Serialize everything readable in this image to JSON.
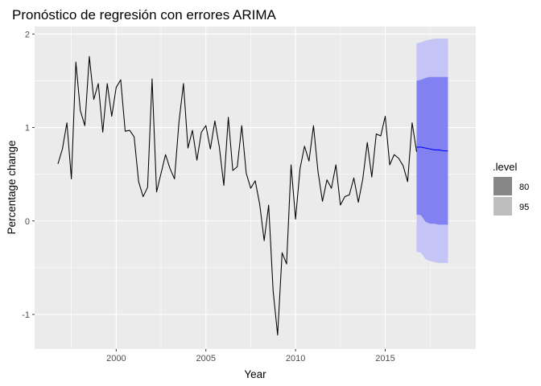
{
  "chart_data": {
    "type": "line",
    "title": "Pronóstico de regresión con errores ARIMA",
    "xlabel": "Year",
    "ylabel": "Percentage change",
    "xlim": [
      1995.45,
      2020.05
    ],
    "ylim": [
      -1.37,
      2.08
    ],
    "x_ticks": [
      2000,
      2005,
      2010,
      2015
    ],
    "x_tick_labels": [
      "2000",
      "2005",
      "2010",
      "2015"
    ],
    "y_ticks": [
      -1,
      0,
      1,
      2
    ],
    "y_tick_labels": [
      "-1",
      "0",
      "1",
      "2"
    ],
    "grid": true,
    "legend_position": "right",
    "series": [
      {
        "start": 1996.75,
        "step": 0.25,
        "values": [
          0.61,
          0.77,
          1.05,
          0.45,
          1.7,
          1.18,
          1.02,
          1.76,
          1.3,
          1.47,
          0.95,
          1.47,
          1.12,
          1.43,
          1.51,
          0.96,
          0.97,
          0.9,
          0.42,
          0.26,
          0.36,
          1.52,
          0.31,
          0.51,
          0.71,
          0.56,
          0.45,
          1.06,
          1.47,
          0.78,
          0.97,
          0.65,
          0.95,
          1.02,
          0.77,
          1.07,
          0.79,
          0.38,
          1.11,
          0.54,
          0.58,
          1.02,
          0.51,
          0.35,
          0.43,
          0.18,
          -0.21,
          0.17,
          -0.75,
          -1.22,
          -0.34,
          -0.46,
          0.6,
          0.02,
          0.56,
          0.8,
          0.64,
          1.02,
          0.53,
          0.21,
          0.44,
          0.35,
          0.6,
          0.17,
          0.26,
          0.28,
          0.46,
          0.2,
          0.45,
          0.84,
          0.47,
          0.93,
          0.91,
          1.12,
          0.6,
          0.71,
          0.67,
          0.59,
          0.42,
          1.05,
          0.74
        ]
      }
    ],
    "forecast": {
      "x": [
        2016.75,
        2017.0,
        2017.25,
        2017.5,
        2017.75,
        2018.0,
        2018.25,
        2018.5
      ],
      "mean": [
        0.79,
        0.79,
        0.78,
        0.77,
        0.76,
        0.76,
        0.75,
        0.75
      ],
      "lo80": [
        0.07,
        0.06,
        -0.01,
        -0.03,
        -0.03,
        -0.04,
        -0.04,
        -0.04
      ],
      "hi80": [
        1.5,
        1.51,
        1.53,
        1.54,
        1.54,
        1.54,
        1.54,
        1.54
      ],
      "lo95": [
        -0.33,
        -0.34,
        -0.41,
        -0.43,
        -0.44,
        -0.45,
        -0.45,
        -0.45
      ],
      "hi95": [
        1.9,
        1.91,
        1.93,
        1.94,
        1.95,
        1.95,
        1.95,
        1.95
      ]
    },
    "legend": {
      "title": ".level",
      "items": [
        {
          "label": "80",
          "color": "#878787"
        },
        {
          "label": "95",
          "color": "#bebebe"
        }
      ]
    },
    "colors": {
      "panel": "#ebebeb",
      "grid_major": "#ffffff",
      "series_line": "#000000",
      "forecast_line": "#0000ff",
      "band80": "#8181f1",
      "band95": "#c4c4f6"
    }
  }
}
